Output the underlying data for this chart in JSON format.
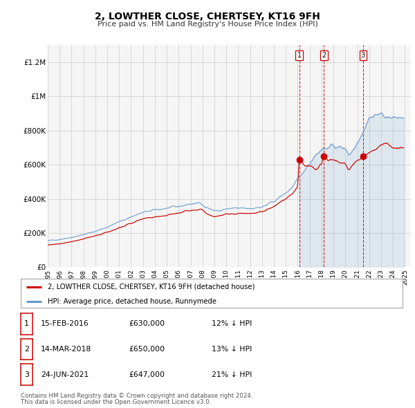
{
  "title": "2, LOWTHER CLOSE, CHERTSEY, KT16 9FH",
  "subtitle": "Price paid vs. HM Land Registry's House Price Index (HPI)",
  "ylabel_ticks": [
    "£0",
    "£200K",
    "£400K",
    "£600K",
    "£800K",
    "£1M",
    "£1.2M"
  ],
  "ytick_values": [
    0,
    200000,
    400000,
    600000,
    800000,
    1000000,
    1200000
  ],
  "ylim": [
    0,
    1300000
  ],
  "xlim_start": 1995.0,
  "xlim_end": 2025.5,
  "red_line_color": "#cc0000",
  "blue_line_color": "#6699cc",
  "sale_marker_color": "#cc0000",
  "vline_color": "#cc0000",
  "grid_color": "#cccccc",
  "bg_color": "#f5f5f5",
  "sale_dates": [
    2016.12,
    2018.2,
    2021.48
  ],
  "sale_prices": [
    630000,
    650000,
    647000
  ],
  "sale_labels": [
    "1",
    "2",
    "3"
  ],
  "sale_date_strings": [
    "15-FEB-2016",
    "14-MAR-2018",
    "24-JUN-2021"
  ],
  "sale_price_strings": [
    "£630,000",
    "£650,000",
    "£647,000"
  ],
  "sale_pct_strings": [
    "12% ↓ HPI",
    "13% ↓ HPI",
    "21% ↓ HPI"
  ],
  "legend_red_label": "2, LOWTHER CLOSE, CHERTSEY, KT16 9FH (detached house)",
  "legend_blue_label": "HPI: Average price, detached house, Runnymede",
  "footer_line1": "Contains HM Land Registry data © Crown copyright and database right 2024.",
  "footer_line2": "This data is licensed under the Open Government Licence v3.0.",
  "xlabel_years": [
    1995,
    1996,
    1997,
    1998,
    1999,
    2000,
    2001,
    2002,
    2003,
    2004,
    2005,
    2006,
    2007,
    2008,
    2009,
    2010,
    2011,
    2012,
    2013,
    2014,
    2015,
    2016,
    2017,
    2018,
    2019,
    2020,
    2021,
    2022,
    2023,
    2024,
    2025
  ]
}
